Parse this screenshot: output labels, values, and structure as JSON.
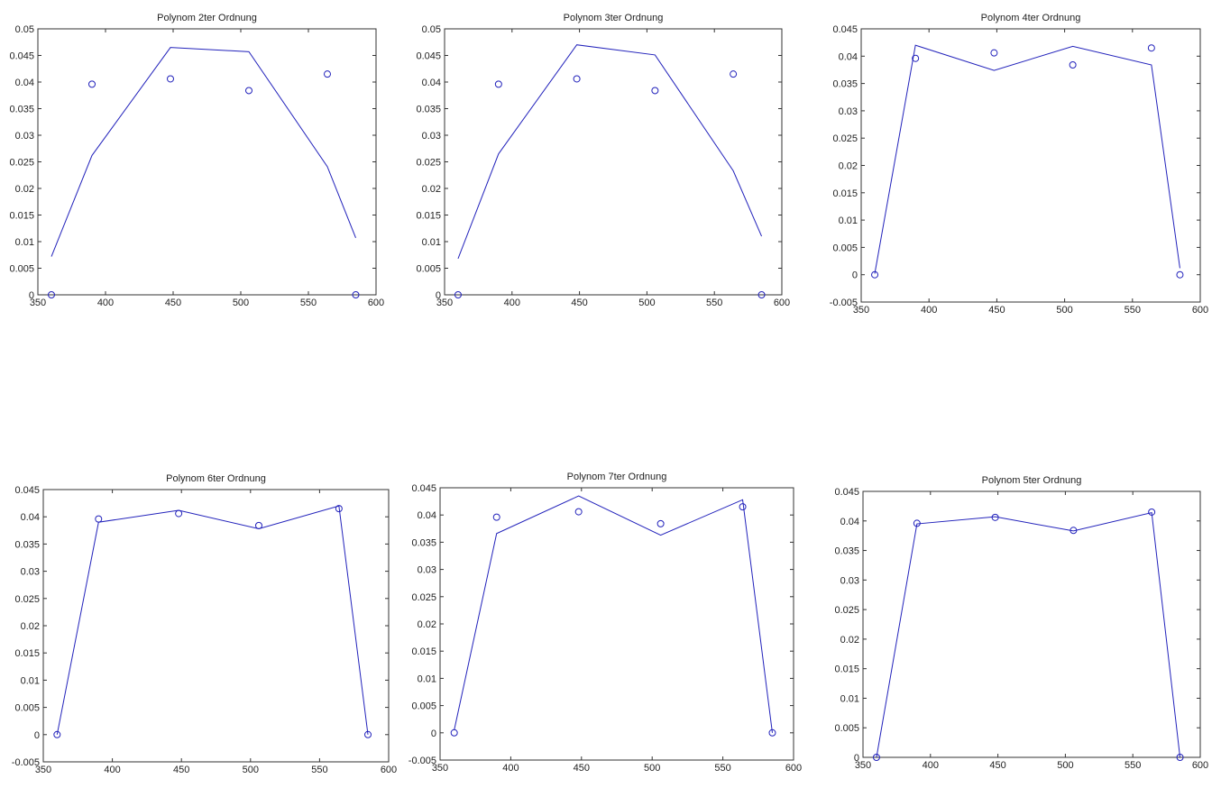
{
  "chart_data": [
    {
      "type": "line",
      "title": "Polynom 2ter Ordnung",
      "xlim": [
        350,
        600
      ],
      "ylim": [
        0,
        0.05
      ],
      "xticks": [
        "350",
        "400",
        "450",
        "500",
        "550",
        "600"
      ],
      "yticks": [
        "0",
        "0.005",
        "0.01",
        "0.015",
        "0.02",
        "0.025",
        "0.03",
        "0.035",
        "0.04",
        "0.045",
        "0.05"
      ],
      "x": [
        360,
        390,
        448,
        506,
        564,
        585
      ],
      "points": [
        0,
        0.0396,
        0.0406,
        0.0384,
        0.0415,
        0
      ],
      "fit": [
        0.0072,
        0.0262,
        0.0465,
        0.0457,
        0.0241,
        0.0107
      ]
    },
    {
      "type": "line",
      "title": "Polynom 3ter Ordnung",
      "xlim": [
        350,
        600
      ],
      "ylim": [
        0,
        0.05
      ],
      "xticks": [
        "350",
        "400",
        "450",
        "500",
        "550",
        "600"
      ],
      "yticks": [
        "0",
        "0.005",
        "0.01",
        "0.015",
        "0.02",
        "0.025",
        "0.03",
        "0.035",
        "0.04",
        "0.045",
        "0.05"
      ],
      "x": [
        360,
        390,
        448,
        506,
        564,
        585
      ],
      "points": [
        0,
        0.0396,
        0.0406,
        0.0384,
        0.0415,
        0
      ],
      "fit": [
        0.0068,
        0.0265,
        0.047,
        0.0451,
        0.0233,
        0.011
      ]
    },
    {
      "type": "line",
      "title": "Polynom 4ter Ordnung",
      "xlim": [
        350,
        600
      ],
      "ylim": [
        -0.005,
        0.045
      ],
      "xticks": [
        "350",
        "400",
        "450",
        "500",
        "550",
        "600"
      ],
      "yticks": [
        "-0.005",
        "0",
        "0.005",
        "0.01",
        "0.015",
        "0.02",
        "0.025",
        "0.03",
        "0.035",
        "0.04",
        "0.045"
      ],
      "x": [
        360,
        390,
        448,
        506,
        564,
        585
      ],
      "points": [
        0,
        0.0396,
        0.0406,
        0.0384,
        0.0415,
        0
      ],
      "fit": [
        0.0002,
        0.042,
        0.0374,
        0.0418,
        0.0384,
        0.0012
      ]
    },
    {
      "type": "line",
      "title": "Polynom 6ter Ordnung",
      "xlim": [
        350,
        600
      ],
      "ylim": [
        -0.005,
        0.045
      ],
      "xticks": [
        "350",
        "400",
        "450",
        "500",
        "550",
        "600"
      ],
      "yticks": [
        "-0.005",
        "0",
        "0.005",
        "0.01",
        "0.015",
        "0.02",
        "0.025",
        "0.03",
        "0.035",
        "0.04",
        "0.045"
      ],
      "x": [
        360,
        390,
        448,
        506,
        564,
        585
      ],
      "points": [
        0,
        0.0396,
        0.0406,
        0.0384,
        0.0415,
        0
      ],
      "fit": [
        0,
        0.039,
        0.0412,
        0.0378,
        0.042,
        0
      ]
    },
    {
      "type": "line",
      "title": "Polynom 7ter Ordnung",
      "xlim": [
        350,
        600
      ],
      "ylim": [
        -0.005,
        0.045
      ],
      "xticks": [
        "350",
        "400",
        "450",
        "500",
        "550",
        "600"
      ],
      "yticks": [
        "-0.005",
        "0",
        "0.005",
        "0.01",
        "0.015",
        "0.02",
        "0.025",
        "0.03",
        "0.035",
        "0.04",
        "0.045"
      ],
      "x": [
        360,
        390,
        448,
        506,
        564,
        585
      ],
      "points": [
        0,
        0.0396,
        0.0406,
        0.0384,
        0.0415,
        0
      ],
      "fit": [
        0.0005,
        0.0366,
        0.0435,
        0.0363,
        0.0428,
        0
      ]
    },
    {
      "type": "line",
      "title": "Polynom 5ter Ordnung",
      "xlim": [
        350,
        600
      ],
      "ylim": [
        0,
        0.045
      ],
      "xticks": [
        "350",
        "400",
        "450",
        "500",
        "550",
        "600"
      ],
      "yticks": [
        "0",
        "0.005",
        "0.01",
        "0.015",
        "0.02",
        "0.025",
        "0.03",
        "0.035",
        "0.04",
        "0.045"
      ],
      "x": [
        360,
        390,
        448,
        506,
        564,
        585
      ],
      "points": [
        0,
        0.0396,
        0.0406,
        0.0384,
        0.0415,
        0
      ],
      "fit": [
        0,
        0.0395,
        0.0407,
        0.0383,
        0.0414,
        0
      ]
    }
  ],
  "colors": {
    "series": "#2222bb",
    "axes": "#333333"
  }
}
